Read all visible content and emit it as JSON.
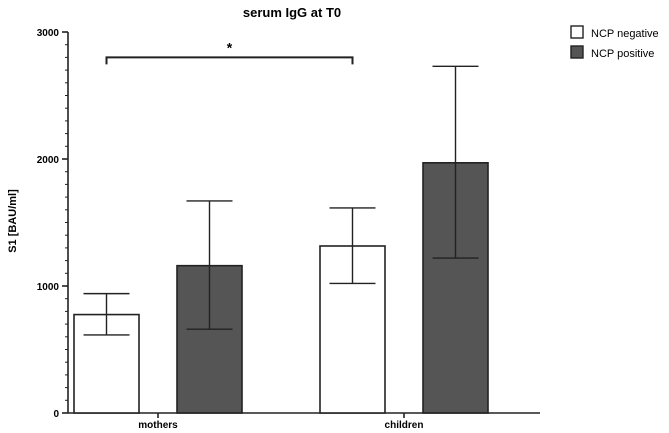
{
  "chart_data": {
    "type": "bar",
    "title": "serum IgG at T0",
    "xlabel": "",
    "ylabel": "S1 [BAU/ml]",
    "categories": [
      "mothers",
      "children"
    ],
    "ylim": [
      0,
      3000
    ],
    "yticks": [
      0,
      1000,
      2000,
      3000
    ],
    "series": [
      {
        "name": "NCP negative",
        "color": "#ffffff",
        "values": [
          775,
          1315
        ],
        "error_low": [
          615,
          1020
        ],
        "error_high": [
          940,
          1615
        ]
      },
      {
        "name": "NCP positive",
        "color": "#555555",
        "values": [
          1160,
          1970
        ],
        "error_low": [
          660,
          1220
        ],
        "error_high": [
          1670,
          2730
        ]
      }
    ],
    "significance": {
      "label": "*",
      "from": {
        "category": "mothers",
        "series": "NCP negative"
      },
      "to": {
        "category": "children",
        "series": "NCP negative"
      },
      "level": 2800
    },
    "legend_position": "top-right",
    "grid": false
  }
}
